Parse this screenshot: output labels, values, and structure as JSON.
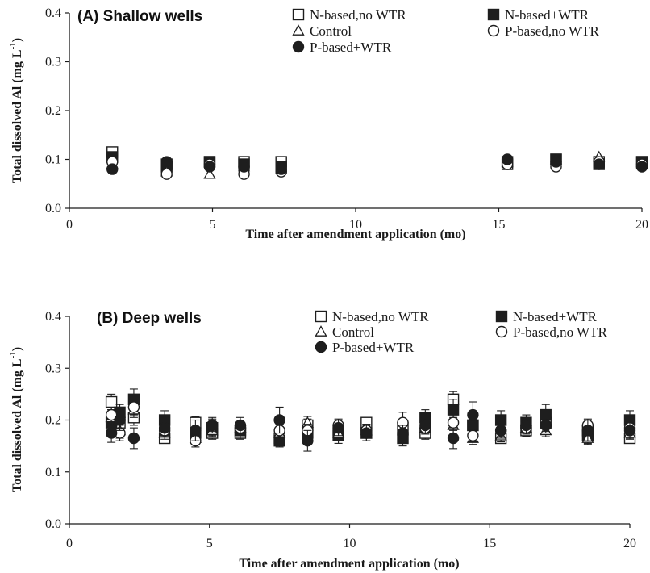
{
  "chart_data": [
    {
      "type": "scatter",
      "title": "(A) Shallow wells",
      "xlabel": "Time after amendment application (mo)",
      "ylabel": "Total dissolved Al (mg L",
      "ylabel_sup": "-1",
      "ylabel_close": ")",
      "xlim": [
        0,
        20
      ],
      "ylim": [
        0,
        0.4
      ],
      "xticks": [
        "0",
        "5",
        "10",
        "15",
        "20"
      ],
      "yticks": [
        "0.0",
        "0.1",
        "0.2",
        "0.3",
        "0.4"
      ],
      "grid": false,
      "legend_entries": [
        "N-based,no WTR",
        "N-based+WTR",
        "Control",
        "P-based,no WTR",
        "P-based+WTR"
      ],
      "series": [
        {
          "name": "N-based,no WTR",
          "marker": "square-open",
          "x": [
            1.5,
            3.4,
            4.9,
            6.1,
            7.4,
            15.3,
            17.0,
            18.5,
            20.0
          ],
          "y": [
            0.115,
            0.09,
            0.095,
            0.095,
            0.095,
            0.09,
            0.1,
            0.095,
            0.095
          ]
        },
        {
          "name": "N-based+WTR",
          "marker": "square-filled",
          "x": [
            1.5,
            3.4,
            4.9,
            6.1,
            7.4,
            15.3,
            17.0,
            18.5,
            20.0
          ],
          "y": [
            0.105,
            0.085,
            0.095,
            0.09,
            0.085,
            0.095,
            0.1,
            0.09,
            0.095
          ]
        },
        {
          "name": "Control",
          "marker": "triangle-open",
          "x": [
            1.5,
            3.4,
            4.9,
            6.1,
            7.4,
            15.3,
            17.0,
            18.5,
            20.0
          ],
          "y": [
            0.09,
            0.075,
            0.07,
            0.085,
            0.08,
            0.095,
            0.1,
            0.105,
            0.09
          ]
        },
        {
          "name": "P-based,no WTR",
          "marker": "circle-open",
          "x": [
            1.5,
            3.4,
            4.9,
            6.1,
            7.4,
            15.3,
            17.0,
            18.5,
            20.0
          ],
          "y": [
            0.095,
            0.07,
            0.09,
            0.07,
            0.075,
            0.09,
            0.085,
            0.095,
            0.09
          ]
        },
        {
          "name": "P-based+WTR",
          "marker": "circle-filled",
          "x": [
            1.5,
            3.4,
            4.9,
            6.1,
            7.4,
            15.3,
            17.0,
            18.5,
            20.0
          ],
          "y": [
            0.08,
            0.095,
            0.085,
            0.085,
            0.08,
            0.1,
            0.095,
            0.09,
            0.085
          ]
        }
      ]
    },
    {
      "type": "scatter",
      "title": "(B) Deep wells",
      "xlabel": "Time after amendment application (mo)",
      "ylabel": "Total dissolved Al (mg L",
      "ylabel_sup": "-1",
      "ylabel_close": ")",
      "xlim": [
        0,
        20
      ],
      "ylim": [
        0,
        0.4
      ],
      "xticks": [
        "0",
        "5",
        "10",
        "15",
        "20"
      ],
      "yticks": [
        "0.0",
        "0.1",
        "0.2",
        "0.3",
        "0.4"
      ],
      "grid": false,
      "legend_entries": [
        "N-based,no WTR",
        "N-based+WTR",
        "Control",
        "P-based,no WTR",
        "P-based+WTR"
      ],
      "series": [
        {
          "name": "N-based,no WTR",
          "marker": "square-open",
          "x": [
            1.5,
            1.8,
            2.3,
            3.4,
            4.5,
            5.1,
            6.1,
            7.5,
            8.5,
            9.6,
            10.6,
            11.9,
            12.7,
            13.7,
            14.4,
            15.4,
            16.3,
            17.0,
            18.5,
            20.0
          ],
          "y": [
            0.235,
            0.195,
            0.205,
            0.165,
            0.195,
            0.175,
            0.175,
            0.165,
            0.19,
            0.18,
            0.195,
            0.185,
            0.175,
            0.24,
            0.19,
            0.165,
            0.18,
            0.195,
            0.18,
            0.165
          ],
          "err": [
            0.015,
            0.012,
            0.015,
            0.01,
            0.012,
            0.012,
            0.012,
            0.01,
            0.012,
            0.012,
            0.01,
            0.012,
            0.012,
            0.015,
            0.015,
            0.01,
            0.012,
            0.012,
            0.012,
            0.01
          ]
        },
        {
          "name": "N-based+WTR",
          "marker": "square-filled",
          "x": [
            1.5,
            1.8,
            2.3,
            3.4,
            4.5,
            5.1,
            6.1,
            7.5,
            8.5,
            9.6,
            10.6,
            11.9,
            12.7,
            13.7,
            14.4,
            15.4,
            16.3,
            17.0,
            18.5,
            20.0
          ],
          "y": [
            0.195,
            0.215,
            0.24,
            0.2,
            0.175,
            0.185,
            0.18,
            0.16,
            0.175,
            0.17,
            0.175,
            0.165,
            0.205,
            0.22,
            0.19,
            0.2,
            0.195,
            0.21,
            0.17,
            0.2
          ],
          "err": [
            0.015,
            0.015,
            0.02,
            0.018,
            0.012,
            0.015,
            0.015,
            0.012,
            0.015,
            0.015,
            0.015,
            0.015,
            0.015,
            0.02,
            0.015,
            0.018,
            0.015,
            0.02,
            0.015,
            0.018
          ]
        },
        {
          "name": "Control",
          "marker": "triangle-open",
          "x": [
            1.5,
            1.8,
            2.3,
            3.4,
            4.5,
            5.1,
            6.1,
            7.5,
            8.5,
            9.6,
            10.6,
            11.9,
            12.7,
            13.7,
            14.4,
            15.4,
            16.3,
            17.0,
            18.5,
            20.0
          ],
          "y": [
            0.205,
            0.18,
            0.22,
            0.175,
            0.165,
            0.18,
            0.185,
            0.175,
            0.195,
            0.175,
            0.18,
            0.18,
            0.185,
            0.19,
            0.165,
            0.17,
            0.185,
            0.18,
            0.165,
            0.175
          ],
          "err": [
            0.015,
            0.015,
            0.015,
            0.012,
            0.012,
            0.012,
            0.012,
            0.012,
            0.012,
            0.012,
            0.012,
            0.012,
            0.012,
            0.015,
            0.012,
            0.012,
            0.012,
            0.012,
            0.012,
            0.012
          ]
        },
        {
          "name": "P-based,no WTR",
          "marker": "circle-open",
          "x": [
            1.5,
            1.8,
            2.3,
            3.4,
            4.5,
            5.1,
            6.1,
            7.5,
            8.5,
            9.6,
            10.6,
            11.9,
            12.7,
            13.7,
            14.4,
            15.4,
            16.3,
            17.0,
            18.5,
            20.0
          ],
          "y": [
            0.21,
            0.175,
            0.225,
            0.18,
            0.16,
            0.19,
            0.185,
            0.18,
            0.18,
            0.19,
            0.18,
            0.195,
            0.185,
            0.195,
            0.17,
            0.18,
            0.185,
            0.19,
            0.19,
            0.185
          ],
          "err": [
            0.015,
            0.015,
            0.015,
            0.012,
            0.012,
            0.012,
            0.012,
            0.012,
            0.012,
            0.012,
            0.012,
            0.02,
            0.012,
            0.015,
            0.012,
            0.012,
            0.012,
            0.012,
            0.012,
            0.012
          ]
        },
        {
          "name": "P-based+WTR",
          "marker": "circle-filled",
          "x": [
            1.5,
            1.8,
            2.3,
            3.4,
            4.5,
            5.1,
            6.1,
            7.5,
            8.5,
            9.6,
            10.6,
            11.9,
            12.7,
            13.7,
            14.4,
            15.4,
            16.3,
            17.0,
            18.5,
            20.0
          ],
          "y": [
            0.175,
            0.2,
            0.165,
            0.185,
            0.18,
            0.19,
            0.19,
            0.2,
            0.16,
            0.185,
            0.175,
            0.175,
            0.19,
            0.165,
            0.21,
            0.18,
            0.19,
            0.19,
            0.18,
            0.18
          ],
          "err": [
            0.018,
            0.02,
            0.02,
            0.015,
            0.02,
            0.015,
            0.015,
            0.025,
            0.02,
            0.015,
            0.015,
            0.015,
            0.015,
            0.02,
            0.025,
            0.015,
            0.015,
            0.015,
            0.02,
            0.015
          ]
        }
      ]
    }
  ],
  "colors": {
    "axis": "#1a1a1a",
    "marker": "#1e1e1e",
    "background": "#ffffff"
  }
}
